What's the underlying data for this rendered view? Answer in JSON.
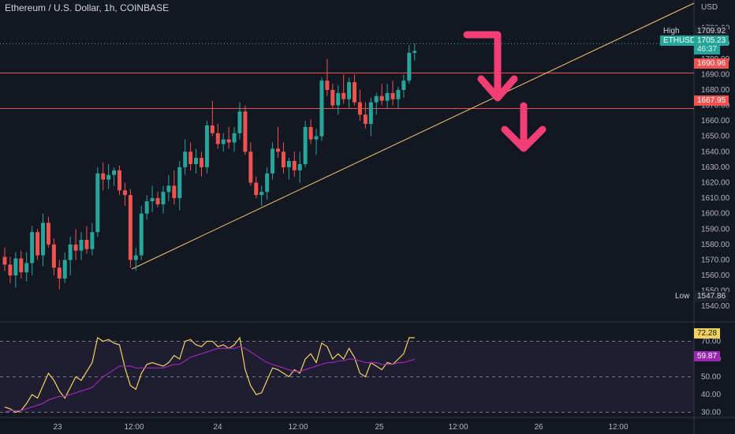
{
  "header": {
    "title": "Ethereum / U.S. Dollar, 1h, COINBASE",
    "currency": "USD"
  },
  "price_tags": {
    "high_label": "High",
    "high_value": "1709.92",
    "symbol": "ETHUSD",
    "current_value": "1705.23",
    "countdown": "46:37",
    "resistance_1": "1690.96",
    "resistance_2": "1667.95",
    "low_label": "Low",
    "low_value": "1547.86"
  },
  "rsi_tags": {
    "rsi_value": "72.28",
    "ma_value": "59.87"
  },
  "colors": {
    "background": "#131722",
    "up": "#26a69a",
    "down": "#ef5350",
    "trendline": "#f2c56b",
    "arrow": "#f23d75",
    "rsi": "#f2d35e",
    "rsi_ma": "#9c27b0"
  },
  "chart_data": [
    {
      "type": "candlestick",
      "title": "Ethereum / U.S. Dollar, 1h, COINBASE",
      "y_unit": "USD",
      "ylim": [
        1535,
        1730
      ],
      "y_ticks": [
        1540,
        1550,
        1560,
        1570,
        1580,
        1590,
        1600,
        1610,
        1620,
        1630,
        1640,
        1650,
        1660,
        1670,
        1680,
        1690,
        1700,
        1710,
        1720
      ],
      "x_ticks": [
        "23",
        "12:00",
        "24",
        "12:00",
        "25",
        "12:00",
        "26",
        "12:00"
      ],
      "grid": false,
      "horizontal_lines": [
        1690.96,
        1667.95
      ],
      "high": 1709.92,
      "low": 1547.86,
      "last": 1705.23,
      "candles": [
        [
          1572,
          1578,
          1563,
          1567
        ],
        [
          1567,
          1572,
          1555,
          1560
        ],
        [
          1560,
          1575,
          1552,
          1571
        ],
        [
          1571,
          1576,
          1558,
          1562
        ],
        [
          1562,
          1575,
          1556,
          1568
        ],
        [
          1568,
          1592,
          1560,
          1588
        ],
        [
          1588,
          1590,
          1570,
          1573
        ],
        [
          1573,
          1600,
          1566,
          1594
        ],
        [
          1594,
          1598,
          1578,
          1580
        ],
        [
          1580,
          1584,
          1560,
          1565
        ],
        [
          1565,
          1570,
          1551,
          1558
        ],
        [
          1558,
          1575,
          1555,
          1570
        ],
        [
          1570,
          1585,
          1560,
          1580
        ],
        [
          1580,
          1590,
          1570,
          1576
        ],
        [
          1576,
          1588,
          1570,
          1583
        ],
        [
          1583,
          1592,
          1574,
          1577
        ],
        [
          1577,
          1594,
          1573,
          1588
        ],
        [
          1588,
          1630,
          1585,
          1626
        ],
        [
          1626,
          1633,
          1615,
          1622
        ],
        [
          1622,
          1632,
          1616,
          1625
        ],
        [
          1625,
          1630,
          1618,
          1628
        ],
        [
          1628,
          1631,
          1612,
          1615
        ],
        [
          1615,
          1620,
          1605,
          1612
        ],
        [
          1612,
          1616,
          1565,
          1570
        ],
        [
          1570,
          1578,
          1563,
          1573
        ],
        [
          1573,
          1605,
          1570,
          1600
        ],
        [
          1600,
          1612,
          1596,
          1608
        ],
        [
          1608,
          1618,
          1601,
          1610
        ],
        [
          1610,
          1614,
          1604,
          1606
        ],
        [
          1606,
          1618,
          1600,
          1614
        ],
        [
          1614,
          1625,
          1608,
          1618
        ],
        [
          1618,
          1628,
          1606,
          1610
        ],
        [
          1610,
          1634,
          1602,
          1630
        ],
        [
          1630,
          1648,
          1625,
          1640
        ],
        [
          1640,
          1646,
          1628,
          1632
        ],
        [
          1632,
          1642,
          1626,
          1636
        ],
        [
          1636,
          1640,
          1624,
          1630
        ],
        [
          1630,
          1660,
          1626,
          1657
        ],
        [
          1657,
          1673,
          1650,
          1652
        ],
        [
          1652,
          1658,
          1642,
          1645
        ],
        [
          1645,
          1652,
          1640,
          1648
        ],
        [
          1648,
          1656,
          1642,
          1646
        ],
        [
          1646,
          1656,
          1640,
          1652
        ],
        [
          1652,
          1672,
          1648,
          1666
        ],
        [
          1666,
          1670,
          1638,
          1640
        ],
        [
          1640,
          1646,
          1618,
          1620
        ],
        [
          1620,
          1624,
          1610,
          1612
        ],
        [
          1612,
          1618,
          1605,
          1614
        ],
        [
          1614,
          1630,
          1609,
          1626
        ],
        [
          1626,
          1646,
          1622,
          1642
        ],
        [
          1642,
          1656,
          1636,
          1640
        ],
        [
          1640,
          1646,
          1626,
          1630
        ],
        [
          1630,
          1636,
          1622,
          1634
        ],
        [
          1634,
          1640,
          1624,
          1628
        ],
        [
          1628,
          1640,
          1620,
          1632
        ],
        [
          1632,
          1660,
          1630,
          1656
        ],
        [
          1656,
          1661,
          1645,
          1648
        ],
        [
          1648,
          1655,
          1638,
          1650
        ],
        [
          1650,
          1688,
          1647,
          1686
        ],
        [
          1686,
          1700,
          1676,
          1680
        ],
        [
          1680,
          1684,
          1668,
          1670
        ],
        [
          1670,
          1683,
          1664,
          1678
        ],
        [
          1678,
          1690,
          1671,
          1674
        ],
        [
          1674,
          1688,
          1668,
          1685
        ],
        [
          1685,
          1690,
          1670,
          1672
        ],
        [
          1672,
          1680,
          1660,
          1664
        ],
        [
          1664,
          1672,
          1655,
          1658
        ],
        [
          1658,
          1675,
          1650,
          1672
        ],
        [
          1672,
          1678,
          1664,
          1676
        ],
        [
          1676,
          1684,
          1670,
          1673
        ],
        [
          1673,
          1684,
          1668,
          1678
        ],
        [
          1678,
          1686,
          1670,
          1674
        ],
        [
          1674,
          1682,
          1668,
          1680
        ],
        [
          1680,
          1690,
          1675,
          1686
        ],
        [
          1686,
          1709,
          1684,
          1704
        ],
        [
          1704,
          1710,
          1699,
          1705.23
        ]
      ]
    },
    {
      "type": "line",
      "title": "RSI",
      "ylim": [
        28,
        80
      ],
      "y_ticks": [
        30,
        40,
        50,
        60,
        70
      ],
      "levels": [
        70,
        50,
        30
      ],
      "last_rsi": 72.28,
      "last_ma": 59.87,
      "series": [
        {
          "values": [
            33,
            32,
            30,
            31,
            35,
            40,
            38,
            45,
            52,
            48,
            42,
            38,
            44,
            50,
            48,
            53,
            58,
            72,
            70,
            71,
            69,
            68,
            55,
            45,
            43,
            52,
            57,
            58,
            57,
            56,
            58,
            62,
            60,
            70,
            71,
            68,
            67,
            70,
            70,
            67,
            68,
            66,
            68,
            72,
            54,
            45,
            40,
            41,
            48,
            55,
            54,
            52,
            50,
            54,
            52,
            60,
            63,
            58,
            69,
            67,
            60,
            63,
            60,
            66,
            61,
            52,
            50,
            58,
            56,
            54,
            58,
            57,
            60,
            63,
            72,
            72
          ]
        },
        {
          "values": [
            30,
            31,
            31,
            31,
            32,
            33,
            34,
            35,
            37,
            38,
            39,
            39,
            40,
            41,
            42,
            43,
            44,
            47,
            50,
            52,
            54,
            56,
            56,
            56,
            55,
            55,
            55,
            55,
            55,
            55,
            56,
            57,
            57,
            59,
            61,
            62,
            63,
            64,
            65,
            66,
            66,
            66,
            66,
            67,
            66,
            64,
            62,
            60,
            58,
            57,
            56,
            55,
            54,
            53,
            53,
            54,
            55,
            56,
            57,
            58,
            58,
            59,
            59,
            60,
            60,
            59,
            58,
            58,
            58,
            57,
            57,
            57,
            58,
            58,
            59,
            59.87
          ]
        }
      ]
    }
  ]
}
